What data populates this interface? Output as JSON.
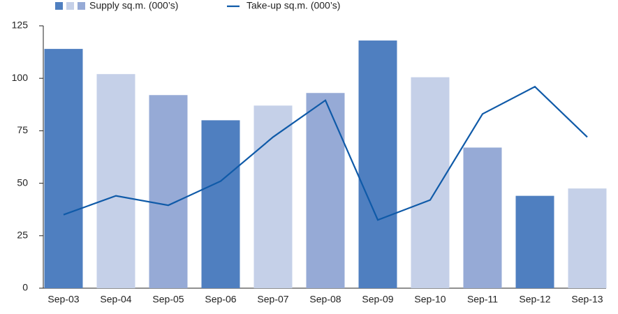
{
  "chart_data": {
    "type": "bar-line",
    "categories": [
      "Sep-03",
      "Sep-04",
      "Sep-05",
      "Sep-06",
      "Sep-07",
      "Sep-08",
      "Sep-09",
      "Sep-10",
      "Sep-11",
      "Sep-12",
      "Sep-13"
    ],
    "series": [
      {
        "name": "Supply sq.m. (000’s)",
        "type": "bar",
        "colors": [
          "#4f7fc0",
          "#c5d0e8",
          "#96aad6",
          "#4f7fc0",
          "#c5d0e8",
          "#96aad6",
          "#4f7fc0",
          "#c5d0e8",
          "#96aad6",
          "#4f7fc0",
          "#c5d0e8"
        ],
        "values": [
          114,
          102,
          92,
          80,
          87,
          93,
          118,
          100.5,
          67,
          44,
          47.5
        ]
      },
      {
        "name": "Take-up sq.m. (000’s)",
        "type": "line",
        "color": "#0f5aa8",
        "values": [
          35,
          44,
          39.5,
          51,
          72,
          89.5,
          32.5,
          42,
          83,
          96,
          72
        ]
      }
    ],
    "ylim": [
      0,
      125
    ],
    "yticks": [
      0,
      25,
      50,
      75,
      100,
      125
    ],
    "grid": false
  }
}
